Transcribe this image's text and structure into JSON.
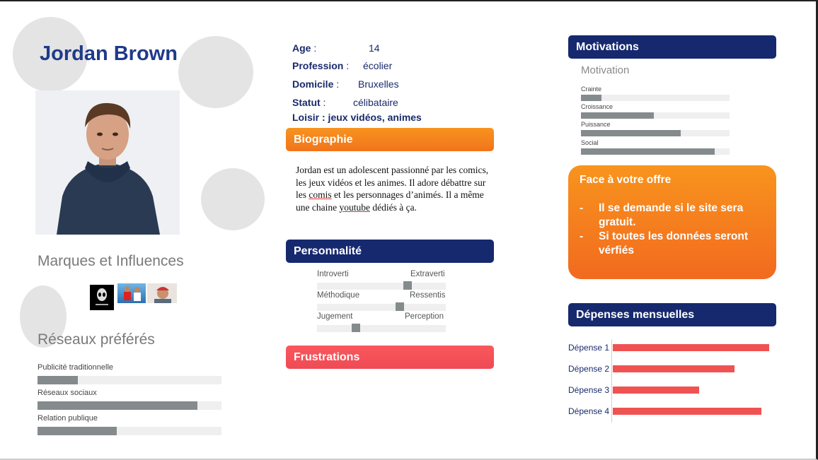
{
  "persona": {
    "name": "Jordan Brown",
    "photo_alt": "portrait-photo"
  },
  "brands": {
    "title": "Marques et Influences",
    "logos": [
      "alienware-logo",
      "sports-thumbnail",
      "youtuber-thumbnail"
    ]
  },
  "networks": {
    "title": "Réseaux préférés",
    "items": [
      {
        "label": "Publicité traditionnelle",
        "value": 0.22
      },
      {
        "label": "Réseaux sociaux",
        "value": 0.87
      },
      {
        "label": "Relation publique",
        "value": 0.43
      }
    ]
  },
  "info": {
    "age_label": "Age",
    "age_sep": " :",
    "age_value": "14",
    "profession_label": "Profession",
    "profession_sep": " :",
    "profession_value": "écolier",
    "domicile_label": "Domicile",
    "domicile_sep": " :",
    "domicile_value": "Bruxelles",
    "statut_label": "Statut",
    "statut_sep": " :",
    "statut_value": "célibataire",
    "loisir": "Loisir : jeux vidéos, animes"
  },
  "biography": {
    "title": "Biographie",
    "text_1": "Jordan est un adolescent passionné par les comics, les jeux vidéos et les animes. Il adore débattre sur les ",
    "text_2": "comis",
    "text_3": " et les personnages d’animés. Il a même une chaine ",
    "text_4": "youtube",
    "text_5": " dédiés à ça."
  },
  "personality": {
    "title": "Personnalité",
    "scales": [
      {
        "left": "Introverti",
        "right": "Extraverti",
        "value": 0.72
      },
      {
        "left": "Méthodique",
        "right": "Ressentis",
        "value": 0.65
      },
      {
        "left": "Jugement",
        "right": "Perception",
        "value": 0.29
      }
    ]
  },
  "frustrations": {
    "title": "Frustrations"
  },
  "motivations": {
    "title": "Motivations",
    "chart_title": "Motivation",
    "items": [
      {
        "label": "Crainte",
        "value": 0.14
      },
      {
        "label": "Croissance",
        "value": 0.49
      },
      {
        "label": "Puissance",
        "value": 0.67
      },
      {
        "label": "Social",
        "value": 0.9
      }
    ]
  },
  "offer": {
    "title": "Face à votre offre",
    "items": [
      {
        "dash": "-",
        "text": "Il se demande si le site sera gratuit."
      },
      {
        "dash": "-",
        "text": "Si toutes les données seront vérfiés"
      }
    ]
  },
  "spending": {
    "title": "Dépenses mensuelles",
    "chart_data": {
      "type": "bar",
      "categories": [
        "Dépense 1",
        "Dépense 2",
        "Dépense 3",
        "Dépense 4"
      ],
      "values": [
        100,
        78,
        55,
        95
      ]
    }
  },
  "colors": {
    "navy": "#16296e",
    "orange": "#f7931e",
    "red": "#f05252",
    "bar_gray": "#858b8c"
  }
}
